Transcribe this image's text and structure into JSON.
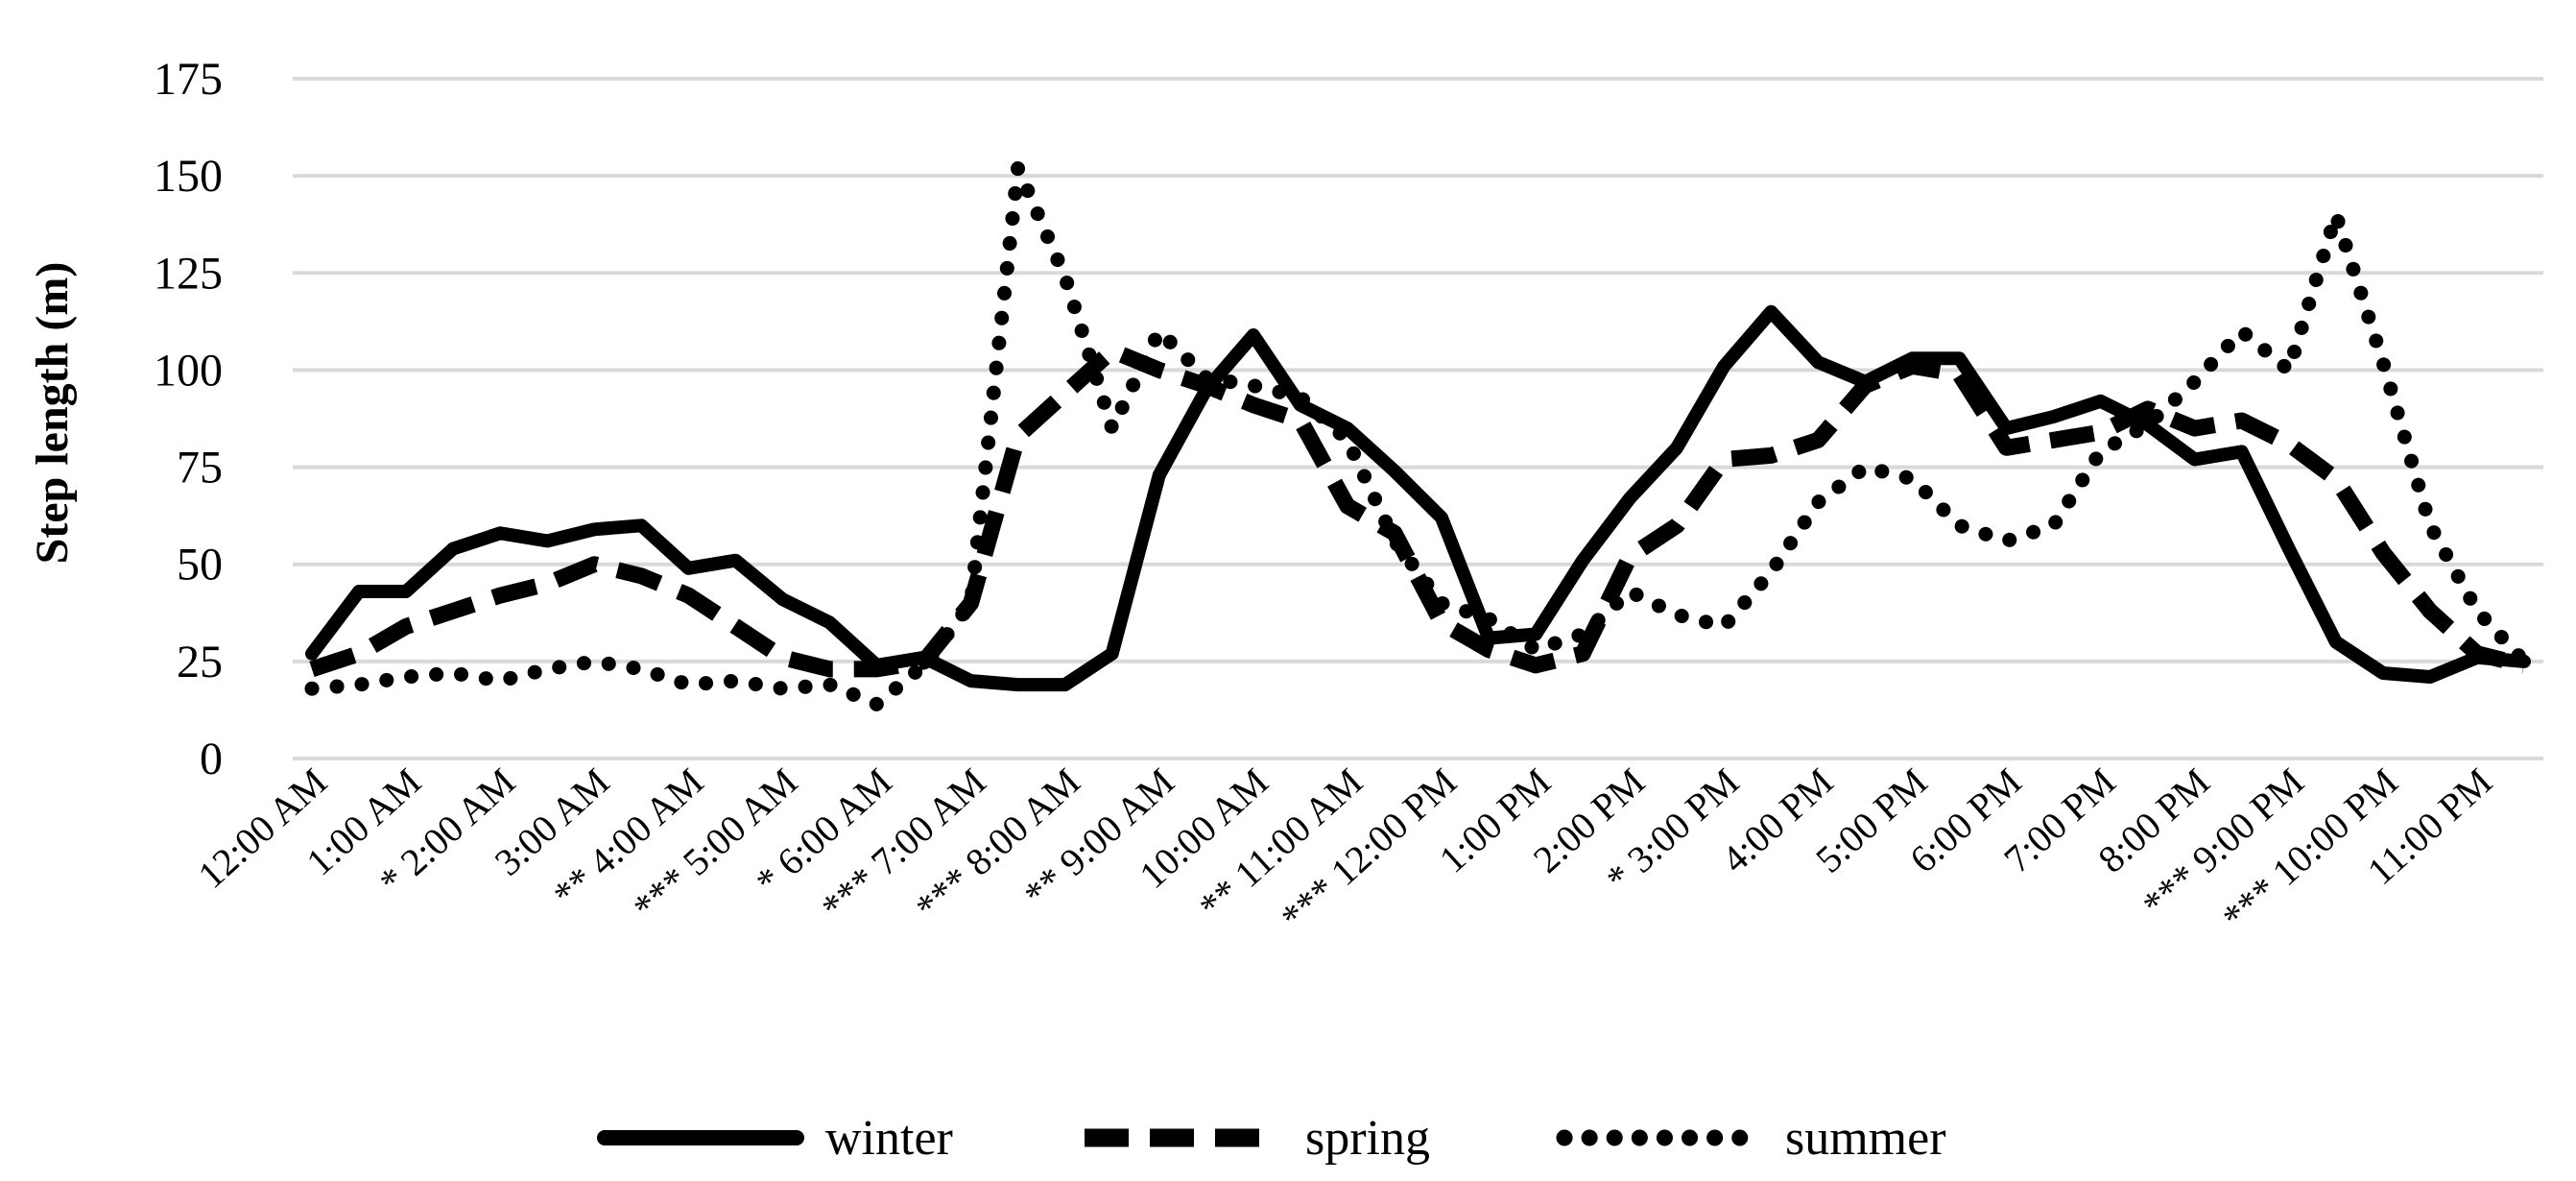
{
  "chart_data": {
    "type": "line",
    "title": "",
    "xlabel": "",
    "ylabel": "Step length (m)",
    "ylim": [
      0,
      175
    ],
    "yticks": [
      "0",
      "25",
      "50",
      "75",
      "100",
      "125",
      "150",
      "175"
    ],
    "grid": true,
    "legend_position": "bottom",
    "category_labels": [
      "12:00 AM",
      "1:00 AM",
      "* 2:00 AM",
      "3:00 AM",
      "** 4:00 AM",
      "*** 5:00 AM",
      "* 6:00 AM",
      "*** 7:00 AM",
      "*** 8:00 AM",
      "** 9:00 AM",
      "10:00 AM",
      "** 11:00 AM",
      "*** 12:00 PM",
      "1:00 PM",
      "2:00 PM",
      "* 3:00 PM",
      "4:00 PM",
      "5:00 PM",
      "6:00 PM",
      "7:00 PM",
      "8:00 PM",
      "*** 9:00 PM",
      "*** 10:00 PM",
      "11:00 PM"
    ],
    "x_step": 0.5,
    "series": [
      {
        "name": "winter",
        "style": "solid",
        "color": "#000000",
        "values": [
          27,
          43,
          43,
          54,
          58,
          56,
          59,
          60,
          49,
          51,
          41,
          35,
          24,
          26,
          20,
          19,
          19,
          27,
          73,
          95,
          109,
          91,
          85,
          74,
          62,
          31,
          32,
          51,
          67,
          80,
          101,
          115,
          102,
          97,
          103,
          103,
          85,
          88,
          92,
          86,
          77,
          79,
          54,
          30,
          22,
          21,
          26,
          25
        ]
      },
      {
        "name": "spring",
        "style": "dashed",
        "color": "#000000",
        "values": [
          23,
          27,
          34,
          38,
          42,
          45,
          50,
          47,
          42,
          34,
          26,
          23,
          23,
          25,
          40,
          83,
          94,
          105,
          100,
          96,
          91,
          87,
          65,
          58,
          35,
          28,
          24,
          27,
          52,
          60,
          77,
          78,
          82,
          96,
          101,
          99,
          80,
          82,
          84,
          90,
          85,
          87,
          81,
          72,
          53,
          38,
          27,
          24
        ]
      },
      {
        "name": "summer",
        "style": "dotted",
        "color": "#000000",
        "values": [
          18,
          19,
          21,
          22,
          20,
          23,
          25,
          23,
          19,
          20,
          18,
          19,
          14,
          24,
          40,
          152,
          124,
          85,
          110,
          98,
          96,
          93,
          82,
          56,
          40,
          36,
          28,
          32,
          43,
          37,
          34,
          48,
          66,
          75,
          72,
          60,
          56,
          60,
          79,
          86,
          97,
          110,
          100,
          140,
          102,
          60,
          38,
          25
        ]
      }
    ]
  }
}
